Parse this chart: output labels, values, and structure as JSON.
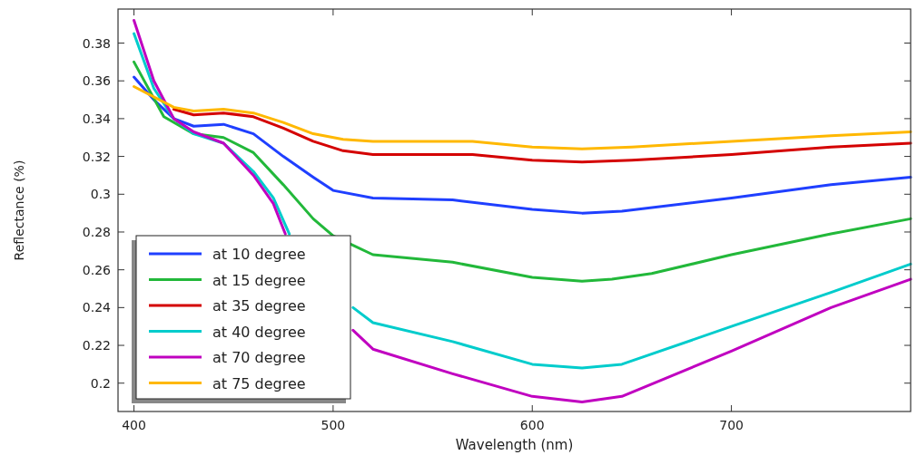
{
  "chart_data": {
    "type": "line",
    "xlabel": "Wavelength (nm)",
    "ylabel": "Reflectance (%)",
    "xlim": [
      392,
      790
    ],
    "xticks": [
      400,
      500,
      600,
      700
    ],
    "ylim": [
      0.185,
      0.398
    ],
    "yticks": [
      {
        "value": 0.2,
        "label": "0.2"
      },
      {
        "value": 0.22,
        "label": "0.22"
      },
      {
        "value": 0.24,
        "label": "0.24"
      },
      {
        "value": 0.26,
        "label": "0.26"
      },
      {
        "value": 0.28,
        "label": "0.28"
      },
      {
        "value": 0.3,
        "label": "0.3"
      },
      {
        "value": 0.32,
        "label": "0.32"
      },
      {
        "value": 0.34,
        "label": "0.34"
      },
      {
        "value": 0.36,
        "label": "0.36"
      },
      {
        "value": 0.38,
        "label": "0.38"
      }
    ],
    "grid": false,
    "legend": "bottom left",
    "marker": "none",
    "line_style": "solid",
    "series": [
      {
        "name": "at 10 degree",
        "color": "#1f3fff",
        "x": [
          400,
          410,
          420,
          430,
          445,
          460,
          475,
          490,
          500,
          520,
          560,
          600,
          625,
          645,
          700,
          750,
          790
        ],
        "values": [
          0.362,
          0.35,
          0.34,
          0.336,
          0.337,
          0.332,
          0.32,
          0.309,
          0.302,
          0.298,
          0.297,
          0.292,
          0.29,
          0.291,
          0.298,
          0.305,
          0.309
        ]
      },
      {
        "name": "at 15 degree",
        "color": "#22b83a",
        "x": [
          400,
          415,
          430,
          445,
          460,
          475,
          490,
          500,
          510,
          520,
          560,
          600,
          625,
          640,
          660,
          700,
          750,
          790
        ],
        "values": [
          0.37,
          0.341,
          0.332,
          0.33,
          0.322,
          0.305,
          0.287,
          0.278,
          0.273,
          0.268,
          0.264,
          0.256,
          0.254,
          0.255,
          0.258,
          0.268,
          0.279,
          0.287
        ]
      },
      {
        "name": "at 35 degree",
        "color": "#d40000",
        "x": [
          420,
          430,
          445,
          460,
          475,
          490,
          505,
          520,
          570,
          600,
          625,
          650,
          700,
          750,
          790
        ],
        "values": [
          0.345,
          0.342,
          0.343,
          0.341,
          0.335,
          0.328,
          0.323,
          0.321,
          0.321,
          0.318,
          0.317,
          0.318,
          0.321,
          0.325,
          0.327
        ]
      },
      {
        "name": "at 40 degree",
        "color": "#00cccc",
        "x": [
          400,
          410,
          420,
          430,
          445,
          460,
          470,
          478,
          495,
          510,
          520,
          560,
          600,
          625,
          645,
          700,
          750,
          790
        ],
        "values": [
          0.385,
          0.356,
          0.34,
          0.332,
          0.327,
          0.312,
          0.298,
          0.279,
          null,
          0.24,
          0.232,
          0.222,
          0.21,
          0.208,
          0.21,
          0.23,
          0.248,
          0.263
        ]
      },
      {
        "name": "at 70 degree",
        "color": "#c000c0",
        "x": [
          400,
          410,
          420,
          430,
          445,
          460,
          470,
          476,
          495,
          510,
          520,
          560,
          600,
          625,
          645,
          700,
          750,
          790
        ],
        "values": [
          0.392,
          0.36,
          0.34,
          0.333,
          0.327,
          0.31,
          0.295,
          0.279,
          null,
          0.228,
          0.218,
          0.205,
          0.193,
          0.19,
          0.193,
          0.217,
          0.24,
          0.255
        ]
      },
      {
        "name": "at 75 degree",
        "color": "#ffb800",
        "x": [
          400,
          420,
          430,
          445,
          460,
          475,
          490,
          505,
          520,
          570,
          600,
          625,
          650,
          700,
          750,
          790
        ],
        "values": [
          0.357,
          0.346,
          0.344,
          0.345,
          0.343,
          0.338,
          0.332,
          0.329,
          0.328,
          0.328,
          0.325,
          0.324,
          0.325,
          0.328,
          0.331,
          0.333
        ]
      }
    ]
  }
}
